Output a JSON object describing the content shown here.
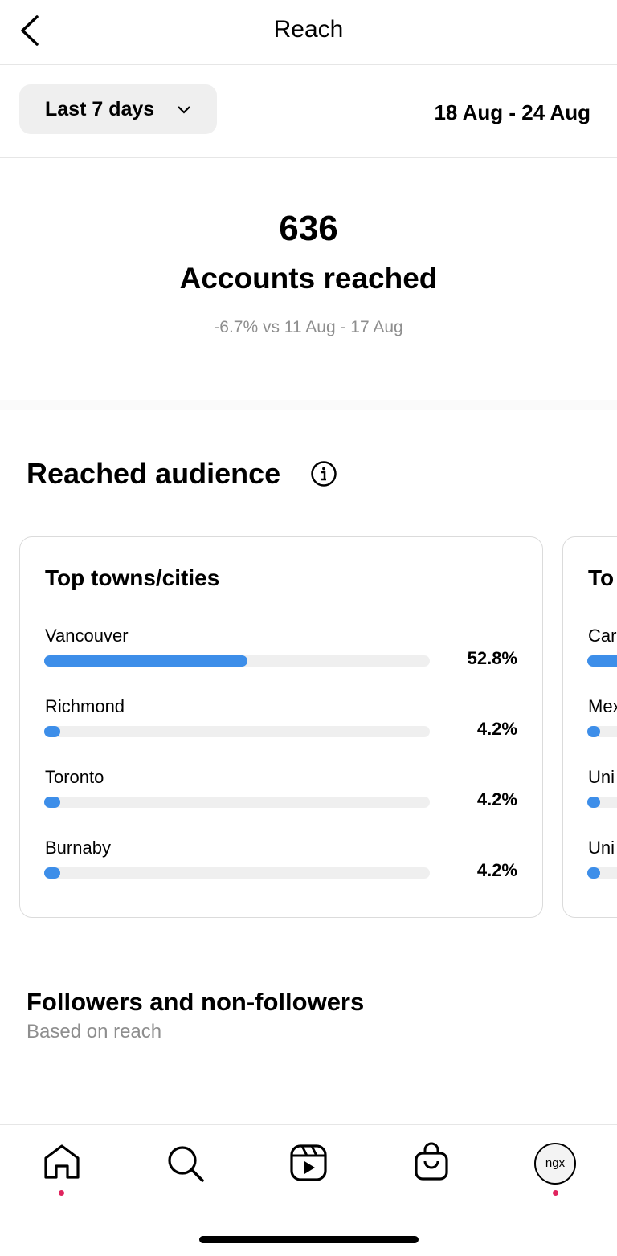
{
  "header": {
    "title": "Reach"
  },
  "filter": {
    "period": "Last 7 days",
    "date_range": "18 Aug - 24 Aug"
  },
  "summary": {
    "count": "636",
    "label": "Accounts reached",
    "comparison": "-6.7% vs 11 Aug - 17 Aug"
  },
  "audience": {
    "title": "Reached audience",
    "cities_card": {
      "title": "Top towns/cities",
      "rows": [
        {
          "name": "Vancouver",
          "value": 52.8,
          "label": "52.8%"
        },
        {
          "name": "Richmond",
          "value": 4.2,
          "label": "4.2%"
        },
        {
          "name": "Toronto",
          "value": 4.2,
          "label": "4.2%"
        },
        {
          "name": "Burnaby",
          "value": 4.2,
          "label": "4.2%"
        }
      ]
    },
    "next_card": {
      "title": "To",
      "rows": [
        "Car",
        "Mex",
        "Uni",
        "Uni"
      ]
    }
  },
  "followers": {
    "title": "Followers and non-followers",
    "subtitle": "Based on reach"
  },
  "tab_bar": {
    "profile": "ngx"
  }
}
